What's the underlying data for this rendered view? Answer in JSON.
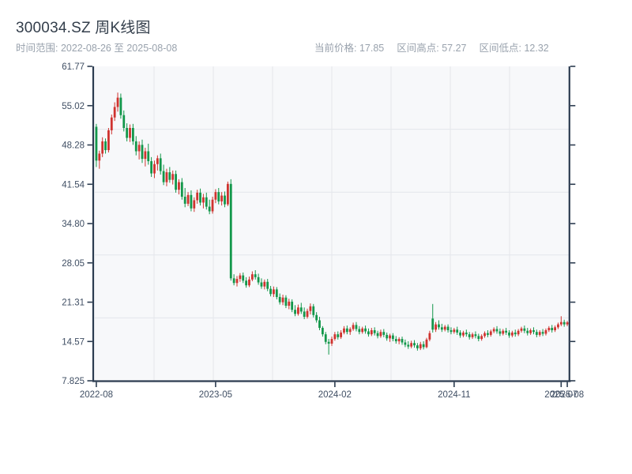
{
  "header": {
    "title": "300034.SZ 周K线图",
    "time_range": "时间范围: 2022-08-26 至 2025-08-08",
    "stats": [
      {
        "label": "当前价格:",
        "value": "17.85"
      },
      {
        "label": "区间高点:",
        "value": "57.27"
      },
      {
        "label": "区间低点:",
        "value": "12.32"
      }
    ]
  },
  "chart_data": {
    "type": "candlestick",
    "title": "300034.SZ 周K线图",
    "symbol": "300034.SZ",
    "frequency": "weekly",
    "start_date": "2022-08-26",
    "end_date": "2025-08-08",
    "current_price": 17.85,
    "range_high": 57.27,
    "range_low": 12.32,
    "y_min": 7.825,
    "y_max": 61.77,
    "y_ticks": [
      "61.77",
      "55.02",
      "48.28",
      "41.54",
      "34.80",
      "28.05",
      "21.31",
      "14.57",
      "7.825"
    ],
    "x_ticks": [
      {
        "index": 0,
        "label": "2022-08"
      },
      {
        "index": 39,
        "label": "2023-05"
      },
      {
        "index": 78,
        "label": "2024-02"
      },
      {
        "index": 117,
        "label": "2024-11"
      },
      {
        "index": 152,
        "label": "2025-07"
      },
      {
        "index": 154,
        "label": "2025-08"
      }
    ],
    "grid": {
      "v_divisions": 8,
      "h_divisions": 5
    },
    "legend": "none",
    "colors": {
      "up": "#cf332f",
      "down": "#12974a",
      "spine": "#2c3c50",
      "grid": "#e4e6eb",
      "plot_bg": "#f7f8fa",
      "tick_label": "#3f4e63",
      "title": "#333e4b",
      "muted": "#99a2ad"
    },
    "color_convention": "red = weekly gain, green = weekly loss",
    "candles_ohlc": [
      [
        51.4,
        51.9,
        44.5,
        45.6
      ],
      [
        45.6,
        47.3,
        44.2,
        46.8
      ],
      [
        46.8,
        49.6,
        46.2,
        48.9
      ],
      [
        48.9,
        49.4,
        46.8,
        47.4
      ],
      [
        47.4,
        51.2,
        47.0,
        50.8
      ],
      [
        50.8,
        53.5,
        50.1,
        53.0
      ],
      [
        53.0,
        55.6,
        52.4,
        54.8
      ],
      [
        54.8,
        57.27,
        54.0,
        56.4
      ],
      [
        56.4,
        57.1,
        52.8,
        53.4
      ],
      [
        53.4,
        54.2,
        50.6,
        51.2
      ],
      [
        51.2,
        52.0,
        48.9,
        49.5
      ],
      [
        49.5,
        51.8,
        48.8,
        51.2
      ],
      [
        51.2,
        51.9,
        48.3,
        48.9
      ],
      [
        48.9,
        49.8,
        46.5,
        47.2
      ],
      [
        47.2,
        48.9,
        45.8,
        48.3
      ],
      [
        48.3,
        49.2,
        45.2,
        45.9
      ],
      [
        45.9,
        47.8,
        44.6,
        47.2
      ],
      [
        47.2,
        48.5,
        44.9,
        45.5
      ],
      [
        45.5,
        46.2,
        42.8,
        43.4
      ],
      [
        43.4,
        45.6,
        42.6,
        45.0
      ],
      [
        45.0,
        46.5,
        43.9,
        46.0
      ],
      [
        46.0,
        46.8,
        43.2,
        43.8
      ],
      [
        43.8,
        44.9,
        41.4,
        41.9
      ],
      [
        41.9,
        44.2,
        41.2,
        43.6
      ],
      [
        43.6,
        44.5,
        41.8,
        42.3
      ],
      [
        42.3,
        43.9,
        41.5,
        43.3
      ],
      [
        43.3,
        43.9,
        40.1,
        40.6
      ],
      [
        40.6,
        42.4,
        39.8,
        41.9
      ],
      [
        41.9,
        42.6,
        38.9,
        39.4
      ],
      [
        39.4,
        40.9,
        37.6,
        38.2
      ],
      [
        38.2,
        40.2,
        37.8,
        39.7
      ],
      [
        39.7,
        40.5,
        36.9,
        37.4
      ],
      [
        37.4,
        39.3,
        36.8,
        38.8
      ],
      [
        38.8,
        40.6,
        38.2,
        40.1
      ],
      [
        40.1,
        40.8,
        37.9,
        38.4
      ],
      [
        38.4,
        39.9,
        37.4,
        39.3
      ],
      [
        39.3,
        40.1,
        37.2,
        37.7
      ],
      [
        37.7,
        38.9,
        36.4,
        36.9
      ],
      [
        36.9,
        39.4,
        36.5,
        38.9
      ],
      [
        38.9,
        40.7,
        38.3,
        40.2
      ],
      [
        40.2,
        40.9,
        38.1,
        38.6
      ],
      [
        38.6,
        40.2,
        37.9,
        39.6
      ],
      [
        39.6,
        40.3,
        37.6,
        38.1
      ],
      [
        38.1,
        42.0,
        37.8,
        41.6
      ],
      [
        41.6,
        42.4,
        25.0,
        25.4
      ],
      [
        25.4,
        26.1,
        24.2,
        24.6
      ],
      [
        24.6,
        25.8,
        24.0,
        25.3
      ],
      [
        25.3,
        26.3,
        24.8,
        25.9
      ],
      [
        25.9,
        26.4,
        24.6,
        25.0
      ],
      [
        25.0,
        25.6,
        23.8,
        24.2
      ],
      [
        24.2,
        25.7,
        23.9,
        25.2
      ],
      [
        25.2,
        26.6,
        24.9,
        26.1
      ],
      [
        26.1,
        26.8,
        25.2,
        25.6
      ],
      [
        25.6,
        26.2,
        24.3,
        24.7
      ],
      [
        24.7,
        25.4,
        23.6,
        24.0
      ],
      [
        24.0,
        25.2,
        23.5,
        24.8
      ],
      [
        24.8,
        25.3,
        23.2,
        23.6
      ],
      [
        23.6,
        24.1,
        22.3,
        22.7
      ],
      [
        22.7,
        24.0,
        22.2,
        23.5
      ],
      [
        23.5,
        23.9,
        21.8,
        22.2
      ],
      [
        22.2,
        22.8,
        20.9,
        21.3
      ],
      [
        21.3,
        22.6,
        20.8,
        22.1
      ],
      [
        22.1,
        22.5,
        20.3,
        20.7
      ],
      [
        20.7,
        21.9,
        20.1,
        21.4
      ],
      [
        21.4,
        21.8,
        19.6,
        20.0
      ],
      [
        20.0,
        20.8,
        18.9,
        19.3
      ],
      [
        19.3,
        20.9,
        19.0,
        20.4
      ],
      [
        20.4,
        21.2,
        19.3,
        19.7
      ],
      [
        19.7,
        20.4,
        18.4,
        18.8
      ],
      [
        18.8,
        20.2,
        18.5,
        19.8
      ],
      [
        19.8,
        21.1,
        19.2,
        20.6
      ],
      [
        20.6,
        21.0,
        18.7,
        19.1
      ],
      [
        19.1,
        19.6,
        17.8,
        18.2
      ],
      [
        18.2,
        18.8,
        16.5,
        16.9
      ],
      [
        16.9,
        17.2,
        15.4,
        15.8
      ],
      [
        15.8,
        16.2,
        14.1,
        14.5
      ],
      [
        14.5,
        15.0,
        12.32,
        14.2
      ],
      [
        14.2,
        15.4,
        13.8,
        15.0
      ],
      [
        15.0,
        16.2,
        14.7,
        15.8
      ],
      [
        15.8,
        16.3,
        14.9,
        15.3
      ],
      [
        15.3,
        16.5,
        15.0,
        16.1
      ],
      [
        16.1,
        17.2,
        15.8,
        16.8
      ],
      [
        16.8,
        17.3,
        15.8,
        16.2
      ],
      [
        16.2,
        17.0,
        15.7,
        16.7
      ],
      [
        16.7,
        17.8,
        16.4,
        17.4
      ],
      [
        17.4,
        17.9,
        16.3,
        16.7
      ],
      [
        16.7,
        17.2,
        15.8,
        16.2
      ],
      [
        16.2,
        17.1,
        15.9,
        16.8
      ],
      [
        16.8,
        17.3,
        15.9,
        16.3
      ],
      [
        16.3,
        16.8,
        15.4,
        15.8
      ],
      [
        15.8,
        16.9,
        15.5,
        16.5
      ],
      [
        16.5,
        17.0,
        15.6,
        16.0
      ],
      [
        16.0,
        16.4,
        15.1,
        15.5
      ],
      [
        15.5,
        16.6,
        15.2,
        16.2
      ],
      [
        16.2,
        16.7,
        15.3,
        15.7
      ],
      [
        15.7,
        16.1,
        14.7,
        15.1
      ],
      [
        15.1,
        15.9,
        14.5,
        15.6
      ],
      [
        15.6,
        16.0,
        14.6,
        15.0
      ],
      [
        15.0,
        15.5,
        14.2,
        14.6
      ],
      [
        14.6,
        15.3,
        14.1,
        15.0
      ],
      [
        15.0,
        15.4,
        14.0,
        14.4
      ],
      [
        14.4,
        14.9,
        13.6,
        14.0
      ],
      [
        14.0,
        14.6,
        13.3,
        13.7
      ],
      [
        13.7,
        14.7,
        13.4,
        14.3
      ],
      [
        14.3,
        14.8,
        13.5,
        13.9
      ],
      [
        13.9,
        14.3,
        13.0,
        13.4
      ],
      [
        13.4,
        14.5,
        13.1,
        14.1
      ],
      [
        14.1,
        14.6,
        13.2,
        13.6
      ],
      [
        13.6,
        15.2,
        13.4,
        14.9
      ],
      [
        14.9,
        16.4,
        14.6,
        16.0
      ],
      [
        18.5,
        21.0,
        16.1,
        16.6
      ],
      [
        16.6,
        17.9,
        16.2,
        17.5
      ],
      [
        17.5,
        18.2,
        16.6,
        17.0
      ],
      [
        17.0,
        17.6,
        16.2,
        16.6
      ],
      [
        16.6,
        17.4,
        16.3,
        17.1
      ],
      [
        17.1,
        17.5,
        16.1,
        16.5
      ],
      [
        16.5,
        17.0,
        15.8,
        16.2
      ],
      [
        16.2,
        16.9,
        15.9,
        16.6
      ],
      [
        16.6,
        17.1,
        15.7,
        16.1
      ],
      [
        16.1,
        16.5,
        15.2,
        15.6
      ],
      [
        15.6,
        16.4,
        15.3,
        16.1
      ],
      [
        16.1,
        16.6,
        15.4,
        15.8
      ],
      [
        15.8,
        16.2,
        14.9,
        15.3
      ],
      [
        15.3,
        16.1,
        15.0,
        15.8
      ],
      [
        15.8,
        16.3,
        15.1,
        15.5
      ],
      [
        15.5,
        15.9,
        14.6,
        15.0
      ],
      [
        15.0,
        15.8,
        14.7,
        15.5
      ],
      [
        15.5,
        16.3,
        15.2,
        16.0
      ],
      [
        16.0,
        16.5,
        15.3,
        15.7
      ],
      [
        15.7,
        16.6,
        15.4,
        16.3
      ],
      [
        16.3,
        17.0,
        16.0,
        16.7
      ],
      [
        16.7,
        17.2,
        15.9,
        16.3
      ],
      [
        16.3,
        16.8,
        15.5,
        15.9
      ],
      [
        15.9,
        16.7,
        15.6,
        16.4
      ],
      [
        16.4,
        16.9,
        15.7,
        16.1
      ],
      [
        16.1,
        16.5,
        15.2,
        15.6
      ],
      [
        15.6,
        16.4,
        15.3,
        16.1
      ],
      [
        16.1,
        16.6,
        15.4,
        15.8
      ],
      [
        15.8,
        16.7,
        15.5,
        16.4
      ],
      [
        16.4,
        17.1,
        16.1,
        16.8
      ],
      [
        16.8,
        17.3,
        16.0,
        16.4
      ],
      [
        16.4,
        16.9,
        15.6,
        16.0
      ],
      [
        16.0,
        16.8,
        15.7,
        16.5
      ],
      [
        16.5,
        17.0,
        15.8,
        16.2
      ],
      [
        16.2,
        16.6,
        15.3,
        15.7
      ],
      [
        15.7,
        16.5,
        15.4,
        16.2
      ],
      [
        16.2,
        16.7,
        15.5,
        15.9
      ],
      [
        15.9,
        16.8,
        15.6,
        16.5
      ],
      [
        16.5,
        17.2,
        16.2,
        16.9
      ],
      [
        16.9,
        17.4,
        16.1,
        16.5
      ],
      [
        16.5,
        17.3,
        16.2,
        17.0
      ],
      [
        17.0,
        17.8,
        16.7,
        17.5
      ],
      [
        17.5,
        18.9,
        17.2,
        17.9
      ],
      [
        17.9,
        18.3,
        17.1,
        17.5
      ],
      [
        17.5,
        18.1,
        17.2,
        17.85
      ]
    ]
  }
}
